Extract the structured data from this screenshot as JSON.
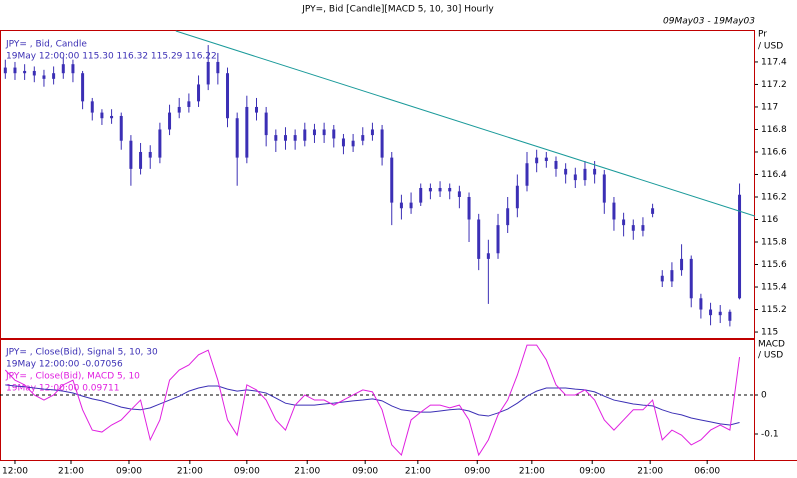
{
  "chart_data": [
    {
      "type": "candlestick",
      "title": "JPY=, Bid [Candle][MACD 5, 10, 30] Hourly",
      "subtitle": "09May03 - 19May03",
      "legend": "JPY= , Bid, Candle",
      "readout": "19May 12:00:00 115.30 116.32 115.29 116.22",
      "ylabel": [
        "Pr",
        "/ USD"
      ],
      "color": "#3b2fb5",
      "xlim": [
        -3.1,
        153.2
      ],
      "ylim": [
        114.947,
        117.675
      ],
      "yticks": [
        115,
        115.2,
        115.4,
        115.6,
        115.8,
        116,
        116.2,
        116.4,
        116.6,
        116.8,
        117,
        117.2,
        117.4
      ],
      "x": [
        -2,
        0,
        2,
        4,
        6,
        8,
        10,
        12,
        14,
        16,
        18,
        20,
        22,
        24,
        26,
        28,
        30,
        32,
        34,
        36,
        38,
        40,
        42,
        44,
        46,
        48,
        50,
        52,
        54,
        56,
        58,
        60,
        62,
        64,
        66,
        68,
        70,
        72,
        74,
        76,
        78,
        80,
        82,
        84,
        86,
        88,
        90,
        92,
        94,
        96,
        98,
        100,
        102,
        104,
        106,
        108,
        110,
        112,
        114,
        116,
        118,
        120,
        122,
        124,
        126,
        128,
        130,
        132,
        134,
        136,
        138,
        140,
        142,
        144,
        146,
        148,
        150
      ],
      "open": [
        117.3,
        117.35,
        117.3,
        117.32,
        117.28,
        117.25,
        117.3,
        117.38,
        117.3,
        117.05,
        116.95,
        116.9,
        116.92,
        116.7,
        116.45,
        116.6,
        116.55,
        116.8,
        116.95,
        117,
        117.05,
        117.2,
        117.4,
        117.3,
        116.9,
        116.55,
        117,
        116.95,
        116.75,
        116.7,
        116.75,
        116.7,
        116.8,
        116.75,
        116.8,
        116.72,
        116.65,
        116.7,
        116.75,
        116.8,
        116.55,
        116.15,
        116.1,
        116.15,
        116.28,
        116.25,
        116.28,
        116.25,
        116.2,
        116,
        115.65,
        115.7,
        115.95,
        116.1,
        116.3,
        116.5,
        116.55,
        116.52,
        116.45,
        116.4,
        116.35,
        116.45,
        116.4,
        116.15,
        116,
        115.95,
        115.9,
        116.05,
        115.5,
        115.45,
        115.55,
        115.65,
        115.3,
        115.2,
        115.15,
        115.18,
        115.3
      ],
      "high": [
        117.42,
        117.4,
        117.38,
        117.36,
        117.33,
        117.36,
        117.44,
        117.42,
        117.32,
        117.08,
        116.98,
        116.98,
        116.95,
        116.75,
        116.68,
        116.66,
        116.86,
        117.02,
        117.08,
        117.12,
        117.28,
        117.55,
        117.48,
        117.35,
        116.95,
        117.1,
        117.08,
        117,
        116.8,
        116.82,
        116.8,
        116.86,
        116.85,
        116.86,
        116.84,
        116.76,
        116.76,
        116.82,
        116.86,
        116.84,
        116.6,
        116.22,
        116.24,
        116.32,
        116.32,
        116.34,
        116.32,
        116.3,
        116.24,
        116.05,
        115.82,
        116.05,
        116.2,
        116.4,
        116.6,
        116.62,
        116.6,
        116.56,
        116.5,
        116.46,
        116.52,
        116.52,
        116.44,
        116.2,
        116.06,
        116,
        116.02,
        116.14,
        115.55,
        115.62,
        115.78,
        115.68,
        115.34,
        115.26,
        115.24,
        115.2,
        116.32
      ],
      "low": [
        117.25,
        117.24,
        117.24,
        117.22,
        117.18,
        117.2,
        117.25,
        117.22,
        116.98,
        116.88,
        116.84,
        116.85,
        116.62,
        116.3,
        116.4,
        116.45,
        116.5,
        116.75,
        116.9,
        116.95,
        117,
        117.15,
        117.2,
        116.82,
        116.3,
        116.5,
        116.88,
        116.65,
        116.6,
        116.62,
        116.62,
        116.65,
        116.68,
        116.68,
        116.64,
        116.58,
        116.6,
        116.66,
        116.7,
        116.48,
        115.95,
        116,
        116.05,
        116.12,
        116.18,
        116.2,
        116.18,
        116.1,
        115.8,
        115.55,
        115.25,
        115.65,
        115.88,
        116.02,
        116.25,
        116.42,
        116.46,
        116.38,
        116.32,
        116.28,
        116.3,
        116.32,
        116.05,
        115.9,
        115.85,
        115.82,
        115.85,
        116.02,
        115.4,
        115.4,
        115.5,
        115.22,
        115.12,
        115.06,
        115.08,
        115.05,
        115.29
      ],
      "close": [
        117.35,
        117.3,
        117.32,
        117.28,
        117.25,
        117.3,
        117.38,
        117.3,
        117.05,
        116.95,
        116.9,
        116.92,
        116.7,
        116.45,
        116.6,
        116.55,
        116.8,
        116.95,
        117,
        117.05,
        117.2,
        117.4,
        117.3,
        116.9,
        116.55,
        117,
        116.95,
        116.75,
        116.7,
        116.75,
        116.7,
        116.8,
        116.75,
        116.8,
        116.72,
        116.65,
        116.7,
        116.75,
        116.8,
        116.55,
        116.15,
        116.1,
        116.15,
        116.28,
        116.25,
        116.28,
        116.25,
        116.2,
        116,
        115.65,
        115.7,
        115.95,
        116.1,
        116.3,
        116.5,
        116.55,
        116.52,
        116.45,
        116.4,
        116.35,
        116.45,
        116.4,
        116.15,
        116,
        115.95,
        115.9,
        115.95,
        116.1,
        115.45,
        115.55,
        115.65,
        115.3,
        115.2,
        115.15,
        115.18,
        115.1,
        116.22
      ],
      "trendline": {
        "color": "#1a9a9a",
        "x": [
          33.3,
          153.2
        ],
        "values": [
          117.675,
          116.03
        ]
      }
    },
    {
      "type": "line",
      "ylabel": [
        "MACD",
        "/ USD"
      ],
      "xlim": [
        -3.1,
        153.2
      ],
      "ylim": [
        -0.1667,
        0.141
      ],
      "yticks": [
        -0.1,
        0
      ],
      "zero_line": true,
      "xticks": [
        {
          "value": 0,
          "label": "12:00"
        },
        {
          "value": 11.6,
          "label": "21:00"
        },
        {
          "value": 23.6,
          "label": "09:00"
        },
        {
          "value": 36.2,
          "label": "21:00"
        },
        {
          "value": 48,
          "label": "09:00"
        },
        {
          "value": 60.5,
          "label": "21:00"
        },
        {
          "value": 72.5,
          "label": "09:00"
        },
        {
          "value": 83.4,
          "label": "21:00"
        },
        {
          "value": 95.7,
          "label": "09:00"
        },
        {
          "value": 107,
          "label": "21:00"
        },
        {
          "value": 119.5,
          "label": "09:00"
        },
        {
          "value": 131.5,
          "label": "21:00"
        },
        {
          "value": 143.3,
          "label": "06:00"
        }
      ],
      "x": [
        -2,
        0,
        2,
        4,
        6,
        8,
        10,
        12,
        14,
        16,
        18,
        20,
        22,
        24,
        26,
        28,
        30,
        32,
        34,
        36,
        38,
        40,
        42,
        44,
        46,
        48,
        50,
        52,
        54,
        56,
        58,
        60,
        62,
        64,
        66,
        68,
        70,
        72,
        74,
        76,
        78,
        80,
        82,
        84,
        86,
        88,
        90,
        92,
        94,
        96,
        98,
        100,
        102,
        104,
        106,
        108,
        110,
        112,
        114,
        116,
        118,
        120,
        122,
        124,
        126,
        128,
        130,
        132,
        134,
        136,
        138,
        140,
        142,
        144,
        146,
        148,
        150
      ],
      "series": [
        {
          "name": "JPY= , Close(Bid), Signal 5, 10, 30",
          "readout": "19May 12:00:00 -0.07056",
          "color": "#3b2fb5",
          "values": [
            0.026,
            0.023,
            0.021,
            0.018,
            0.015,
            0.013,
            0.01,
            0.005,
            -0.003,
            -0.01,
            -0.015,
            -0.023,
            -0.031,
            -0.036,
            -0.038,
            -0.033,
            -0.023,
            -0.013,
            -0.003,
            0.01,
            0.018,
            0.023,
            0.023,
            0.015,
            0.01,
            0.013,
            0.01,
            0.005,
            -0.008,
            -0.021,
            -0.026,
            -0.026,
            -0.026,
            -0.023,
            -0.021,
            -0.018,
            -0.015,
            -0.013,
            -0.01,
            -0.015,
            -0.028,
            -0.038,
            -0.041,
            -0.044,
            -0.044,
            -0.041,
            -0.038,
            -0.036,
            -0.041,
            -0.051,
            -0.054,
            -0.046,
            -0.036,
            -0.021,
            -0.003,
            0.01,
            0.018,
            0.018,
            0.018,
            0.015,
            0.013,
            0.008,
            -0.003,
            -0.013,
            -0.018,
            -0.023,
            -0.026,
            -0.028,
            -0.038,
            -0.046,
            -0.051,
            -0.059,
            -0.064,
            -0.069,
            -0.074,
            -0.077,
            -0.07056
          ]
        },
        {
          "name": "JPY= , Close(Bid), MACD 5, 10",
          "readout": "19May 12:00:00 0.09711",
          "color": "#e020e0",
          "values": [
            0.064,
            0.038,
            0.026,
            0,
            -0.013,
            0,
            0.026,
            0.038,
            -0.038,
            -0.09,
            -0.095,
            -0.077,
            -0.064,
            -0.038,
            -0.013,
            -0.115,
            -0.064,
            0.038,
            0.064,
            0.077,
            0.103,
            0.115,
            0.038,
            -0.064,
            -0.103,
            0.026,
            0.013,
            -0.013,
            -0.064,
            -0.09,
            -0.026,
            0,
            -0.013,
            -0.013,
            -0.026,
            -0.013,
            0,
            0.013,
            0.008,
            -0.038,
            -0.128,
            -0.154,
            -0.064,
            -0.044,
            -0.026,
            -0.026,
            -0.033,
            -0.026,
            -0.064,
            -0.154,
            -0.115,
            -0.051,
            -0.013,
            0.051,
            0.128,
            0.128,
            0.09,
            0.026,
            0,
            0,
            0.013,
            -0.013,
            -0.064,
            -0.09,
            -0.064,
            -0.038,
            -0.038,
            -0.013,
            -0.115,
            -0.09,
            -0.103,
            -0.128,
            -0.115,
            -0.09,
            -0.077,
            -0.09,
            0.09711
          ]
        }
      ]
    }
  ]
}
